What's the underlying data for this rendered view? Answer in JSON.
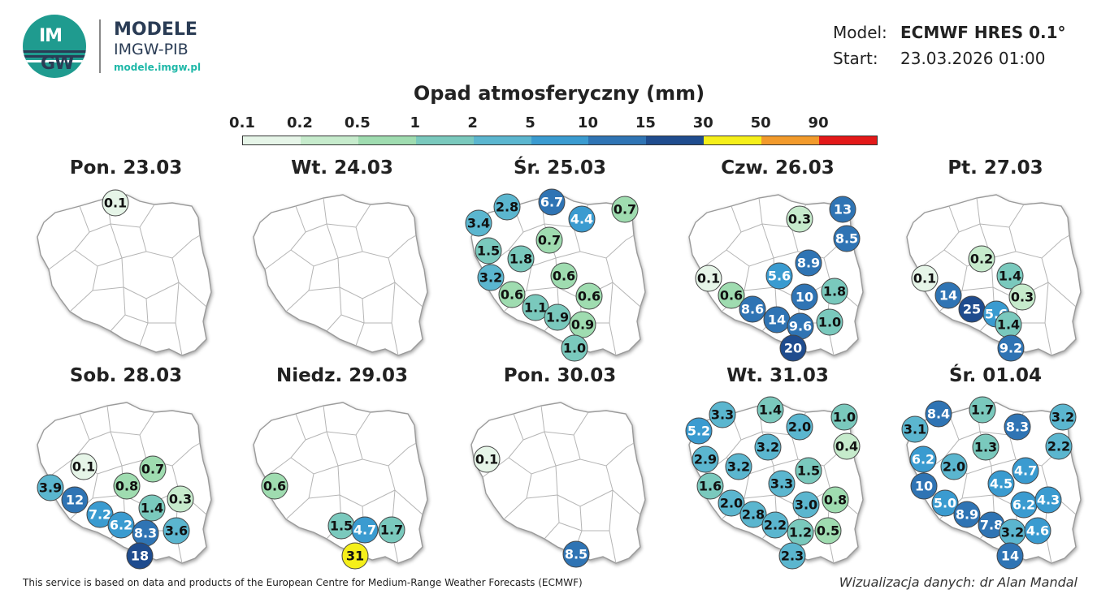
{
  "header": {
    "brand_line1": "MODELE",
    "brand_line2": "IMGW-PIB",
    "brand_url": "modele.imgw.pl",
    "logo_text_top": "IM",
    "logo_text_bottom": "GW",
    "model_label": "Model:",
    "model_value": "ECMWF HRES 0.1°",
    "start_label": "Start:",
    "start_value": "23.03.2026 01:00"
  },
  "title": "Opad atmosferyczny (mm)",
  "legend": {
    "ticks": [
      "0.1",
      "0.2",
      "0.5",
      "1",
      "2",
      "5",
      "10",
      "15",
      "30",
      "50",
      "90"
    ],
    "colors": [
      "#e6f5e8",
      "#c6ebcc",
      "#9fdcb0",
      "#7ac9bd",
      "#5bb6cf",
      "#3a9bd0",
      "#2f74b4",
      "#1f4c8e",
      "#f5ef1a",
      "#f29a2b",
      "#e31919"
    ]
  },
  "days": [
    {
      "label": "Pon. 23.03",
      "values": [
        {
          "v": "0.1",
          "c": "#e6f5e8"
        }
      ]
    },
    {
      "label": "Wt. 24.03",
      "values": []
    },
    {
      "label": "Śr. 25.03",
      "values": [
        {
          "v": "2.8",
          "c": "#5bb6cf"
        },
        {
          "v": "6.7",
          "c": "#2f74b4"
        },
        {
          "v": "0.7",
          "c": "#9fdcb0"
        },
        {
          "v": "3.4",
          "c": "#5bb6cf"
        },
        {
          "v": "4.4",
          "c": "#3a9bd0"
        },
        {
          "v": "0.7",
          "c": "#9fdcb0"
        },
        {
          "v": "1.5",
          "c": "#7ac9bd"
        },
        {
          "v": "1.8",
          "c": "#7ac9bd"
        },
        {
          "v": "3.2",
          "c": "#5bb6cf"
        },
        {
          "v": "0.6",
          "c": "#9fdcb0"
        },
        {
          "v": "0.6",
          "c": "#9fdcb0"
        },
        {
          "v": "0.6",
          "c": "#9fdcb0"
        },
        {
          "v": "1.1",
          "c": "#7ac9bd"
        },
        {
          "v": "1.9",
          "c": "#7ac9bd"
        },
        {
          "v": "0.9",
          "c": "#9fdcb0"
        },
        {
          "v": "1.0",
          "c": "#7ac9bd"
        }
      ]
    },
    {
      "label": "Czw. 26.03",
      "values": [
        {
          "v": "13",
          "c": "#2f74b4"
        },
        {
          "v": "0.3",
          "c": "#c6ebcc"
        },
        {
          "v": "8.5",
          "c": "#2f74b4"
        },
        {
          "v": "8.9",
          "c": "#2f74b4"
        },
        {
          "v": "5.6",
          "c": "#3a9bd0"
        },
        {
          "v": "0.1",
          "c": "#e6f5e8"
        },
        {
          "v": "10",
          "c": "#2f74b4"
        },
        {
          "v": "1.8",
          "c": "#7ac9bd"
        },
        {
          "v": "0.6",
          "c": "#9fdcb0"
        },
        {
          "v": "8.6",
          "c": "#2f74b4"
        },
        {
          "v": "14",
          "c": "#2f74b4"
        },
        {
          "v": "9.6",
          "c": "#2f74b4"
        },
        {
          "v": "1.0",
          "c": "#7ac9bd"
        },
        {
          "v": "20",
          "c": "#1f4c8e"
        }
      ]
    },
    {
      "label": "Pt. 27.03",
      "values": [
        {
          "v": "0.2",
          "c": "#c6ebcc"
        },
        {
          "v": "0.1",
          "c": "#e6f5e8"
        },
        {
          "v": "1.4",
          "c": "#7ac9bd"
        },
        {
          "v": "14",
          "c": "#2f74b4"
        },
        {
          "v": "0.3",
          "c": "#c6ebcc"
        },
        {
          "v": "25",
          "c": "#1f4c8e"
        },
        {
          "v": "5.6",
          "c": "#3a9bd0"
        },
        {
          "v": "1.4",
          "c": "#7ac9bd"
        },
        {
          "v": "9.2",
          "c": "#2f74b4"
        }
      ]
    },
    {
      "label": "Sob. 28.03",
      "values": [
        {
          "v": "0.1",
          "c": "#e6f5e8"
        },
        {
          "v": "0.7",
          "c": "#9fdcb0"
        },
        {
          "v": "3.9",
          "c": "#5bb6cf"
        },
        {
          "v": "0.8",
          "c": "#9fdcb0"
        },
        {
          "v": "12",
          "c": "#2f74b4"
        },
        {
          "v": "1.4",
          "c": "#7ac9bd"
        },
        {
          "v": "0.3",
          "c": "#c6ebcc"
        },
        {
          "v": "7.2",
          "c": "#3a9bd0"
        },
        {
          "v": "6.2",
          "c": "#3a9bd0"
        },
        {
          "v": "8.3",
          "c": "#2f74b4"
        },
        {
          "v": "3.6",
          "c": "#5bb6cf"
        },
        {
          "v": "18",
          "c": "#1f4c8e"
        }
      ]
    },
    {
      "label": "Niedz. 29.03",
      "values": [
        {
          "v": "0.6",
          "c": "#9fdcb0"
        },
        {
          "v": "1.5",
          "c": "#7ac9bd"
        },
        {
          "v": "4.7",
          "c": "#3a9bd0"
        },
        {
          "v": "1.7",
          "c": "#7ac9bd"
        },
        {
          "v": "31",
          "c": "#f5ef1a"
        }
      ]
    },
    {
      "label": "Pon. 30.03",
      "values": [
        {
          "v": "0.1",
          "c": "#e6f5e8"
        },
        {
          "v": "8.5",
          "c": "#2f74b4"
        }
      ]
    },
    {
      "label": "Wt. 31.03",
      "values": [
        {
          "v": "3.3",
          "c": "#5bb6cf"
        },
        {
          "v": "1.4",
          "c": "#7ac9bd"
        },
        {
          "v": "5.2",
          "c": "#3a9bd0"
        },
        {
          "v": "2.0",
          "c": "#5bb6cf"
        },
        {
          "v": "1.0",
          "c": "#7ac9bd"
        },
        {
          "v": "3.2",
          "c": "#5bb6cf"
        },
        {
          "v": "0.4",
          "c": "#c6ebcc"
        },
        {
          "v": "2.9",
          "c": "#5bb6cf"
        },
        {
          "v": "3.2",
          "c": "#5bb6cf"
        },
        {
          "v": "1.5",
          "c": "#7ac9bd"
        },
        {
          "v": "1.6",
          "c": "#7ac9bd"
        },
        {
          "v": "3.3",
          "c": "#5bb6cf"
        },
        {
          "v": "2.0",
          "c": "#5bb6cf"
        },
        {
          "v": "3.0",
          "c": "#5bb6cf"
        },
        {
          "v": "0.8",
          "c": "#9fdcb0"
        },
        {
          "v": "2.8",
          "c": "#5bb6cf"
        },
        {
          "v": "2.2",
          "c": "#5bb6cf"
        },
        {
          "v": "1.2",
          "c": "#7ac9bd"
        },
        {
          "v": "0.5",
          "c": "#9fdcb0"
        },
        {
          "v": "2.3",
          "c": "#5bb6cf"
        }
      ]
    },
    {
      "label": "Śr. 01.04",
      "values": [
        {
          "v": "8.4",
          "c": "#2f74b4"
        },
        {
          "v": "1.7",
          "c": "#7ac9bd"
        },
        {
          "v": "3.2",
          "c": "#5bb6cf"
        },
        {
          "v": "3.1",
          "c": "#5bb6cf"
        },
        {
          "v": "8.3",
          "c": "#2f74b4"
        },
        {
          "v": "2.2",
          "c": "#5bb6cf"
        },
        {
          "v": "1.3",
          "c": "#7ac9bd"
        },
        {
          "v": "6.2",
          "c": "#3a9bd0"
        },
        {
          "v": "2.0",
          "c": "#5bb6cf"
        },
        {
          "v": "4.7",
          "c": "#3a9bd0"
        },
        {
          "v": "10",
          "c": "#2f74b4"
        },
        {
          "v": "4.5",
          "c": "#3a9bd0"
        },
        {
          "v": "5.0",
          "c": "#3a9bd0"
        },
        {
          "v": "6.2",
          "c": "#3a9bd0"
        },
        {
          "v": "4.3",
          "c": "#3a9bd0"
        },
        {
          "v": "8.9",
          "c": "#2f74b4"
        },
        {
          "v": "7.8",
          "c": "#2f74b4"
        },
        {
          "v": "3.2",
          "c": "#5bb6cf"
        },
        {
          "v": "4.6",
          "c": "#3a9bd0"
        },
        {
          "v": "14",
          "c": "#2f74b4"
        }
      ]
    }
  ],
  "footer": {
    "disclaimer": "This service is based on data and products of the European Centre for Medium-Range Weather Forecasts (ECMWF)",
    "credit": "Wizualizacja danych: dr Alan Mandal"
  }
}
